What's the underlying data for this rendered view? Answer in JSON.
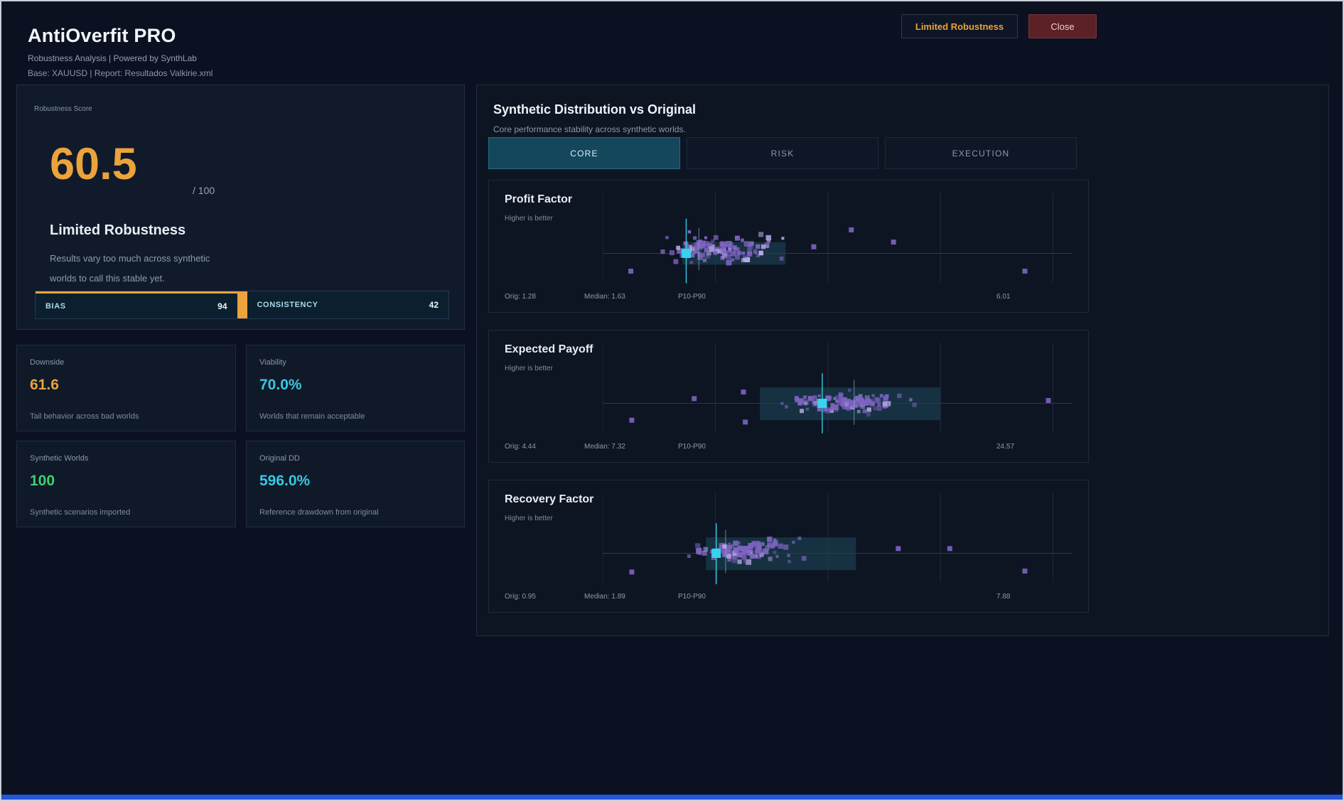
{
  "colors": {
    "accent_orange": "#eba33c",
    "accent_cyan": "#3cc5e0",
    "accent_green": "#3ecf72",
    "scatter": "#7e63c2",
    "scatter_light": "#b9aae6",
    "cyan": "#38d3ec",
    "vline2": "#9fb9c9",
    "band": "#1c4456",
    "grid": "#1f2b40",
    "baseline": "#2a3850"
  },
  "header": {
    "title": "AntiOverfit PRO",
    "subtitle": "Robustness Analysis | Powered by SynthLab",
    "meta": "Base: XAUUSD   |   Report: Resultados Valkirie.xml",
    "status_badge": "Limited Robustness",
    "close_label": "Close"
  },
  "score_panel": {
    "label": "Robustness Score",
    "value": "60.5",
    "denominator": "/ 100",
    "verdict": "Limited Robustness",
    "description_line1": "Results vary too much across synthetic",
    "description_line2": "worlds to call this stable yet.",
    "bars": [
      {
        "label": "BIAS",
        "value": "94"
      },
      {
        "label": "CONSISTENCY",
        "value": "42"
      }
    ]
  },
  "stat_cards": [
    {
      "label": "Downside",
      "value": "61.6",
      "color": "orange",
      "caption": "Tail behavior across bad worlds"
    },
    {
      "label": "Viability",
      "value": "70.0%",
      "color": "cyan",
      "caption": "Worlds that remain acceptable"
    },
    {
      "label": "Synthetic Worlds",
      "value": "100",
      "color": "green",
      "caption": "Synthetic scenarios imported"
    },
    {
      "label": "Original DD",
      "value": "596.0%",
      "color": "cyan",
      "caption": "Reference drawdown from original"
    }
  ],
  "distribution_panel": {
    "title": "Synthetic Distribution vs Original",
    "subtitle": "Core performance stability across synthetic worlds.",
    "tabs": [
      {
        "label": "CORE",
        "active": true
      },
      {
        "label": "RISK",
        "active": false
      },
      {
        "label": "EXECUTION",
        "active": false
      }
    ]
  },
  "chart_data": {
    "type": "scatter",
    "title": "Synthetic Distribution vs Original",
    "subtitle": "Core performance stability across synthetic worlds.",
    "legend_position": "none",
    "grid": true,
    "charts": [
      {
        "title": "Profit Factor",
        "note": "Higher is better",
        "orig": 1.28,
        "median": 1.63,
        "x_max": 6.01,
        "orig_label": "Orig: 1.28",
        "median_label": "Median: 1.63",
        "range_label": "P10-P90",
        "max_label": "6.01",
        "plot": {
          "grid": [
            0,
            0.24,
            0.48,
            0.72,
            0.96
          ],
          "band": [
            0.17,
            0.39
          ],
          "band_y": [
            0.55,
            0.79
          ],
          "marker": [
            0.178,
            0.67
          ],
          "vlines": [
            {
              "x": 0.178,
              "y0": 0.3,
              "y1": 0.99
            },
            {
              "x": 0.205,
              "y0": 0.4,
              "y1": 0.85
            }
          ],
          "scatter": {
            "seed": 7,
            "count": 115,
            "cx": 0.25,
            "sx": 0.2,
            "cy": 0.62,
            "sy": 0.22
          },
          "outliers": [
            [
              0.06,
              0.86
            ],
            [
              0.9,
              0.86
            ],
            [
              0.62,
              0.55
            ],
            [
              0.53,
              0.42
            ],
            [
              0.45,
              0.6
            ]
          ]
        }
      },
      {
        "title": "Expected Payoff",
        "note": "Higher is better",
        "orig": 4.44,
        "median": 7.32,
        "x_max": 24.57,
        "orig_label": "Orig: 4.44",
        "median_label": "Median: 7.32",
        "range_label": "P10-P90",
        "max_label": "24.57",
        "plot": {
          "grid": [
            0,
            0.24,
            0.48,
            0.72,
            0.96
          ],
          "band": [
            0.335,
            0.72
          ],
          "band_y": [
            0.5,
            0.85
          ],
          "marker": [
            0.468,
            0.67
          ],
          "vlines": [
            {
              "x": 0.468,
              "y0": 0.35,
              "y1": 0.99
            },
            {
              "x": 0.536,
              "y0": 0.42,
              "y1": 0.9
            }
          ],
          "scatter": {
            "seed": 21,
            "count": 120,
            "cx": 0.52,
            "sx": 0.2,
            "cy": 0.66,
            "sy": 0.17
          },
          "outliers": [
            [
              0.062,
              0.85
            ],
            [
              0.195,
              0.62
            ],
            [
              0.304,
              0.87
            ],
            [
              0.95,
              0.64
            ],
            [
              0.3,
              0.55
            ]
          ]
        }
      },
      {
        "title": "Recovery Factor",
        "note": "Higher is better",
        "orig": 0.95,
        "median": 1.89,
        "x_max": 7.88,
        "orig_label": "Orig: 0.95",
        "median_label": "Median: 1.89",
        "range_label": "P10-P90",
        "max_label": "7.88",
        "plot": {
          "grid": [
            0,
            0.24,
            0.48,
            0.72,
            0.96
          ],
          "band": [
            0.22,
            0.54
          ],
          "band_y": [
            0.5,
            0.85
          ],
          "marker": [
            0.242,
            0.67
          ],
          "vlines": [
            {
              "x": 0.242,
              "y0": 0.35,
              "y1": 1.0
            },
            {
              "x": 0.262,
              "y0": 0.42,
              "y1": 0.88
            }
          ],
          "scatter": {
            "seed": 33,
            "count": 115,
            "cx": 0.29,
            "sx": 0.18,
            "cy": 0.64,
            "sy": 0.2
          },
          "outliers": [
            [
              0.062,
              0.87
            ],
            [
              0.74,
              0.62
            ],
            [
              0.9,
              0.86
            ],
            [
              0.63,
              0.62
            ]
          ]
        }
      }
    ]
  }
}
